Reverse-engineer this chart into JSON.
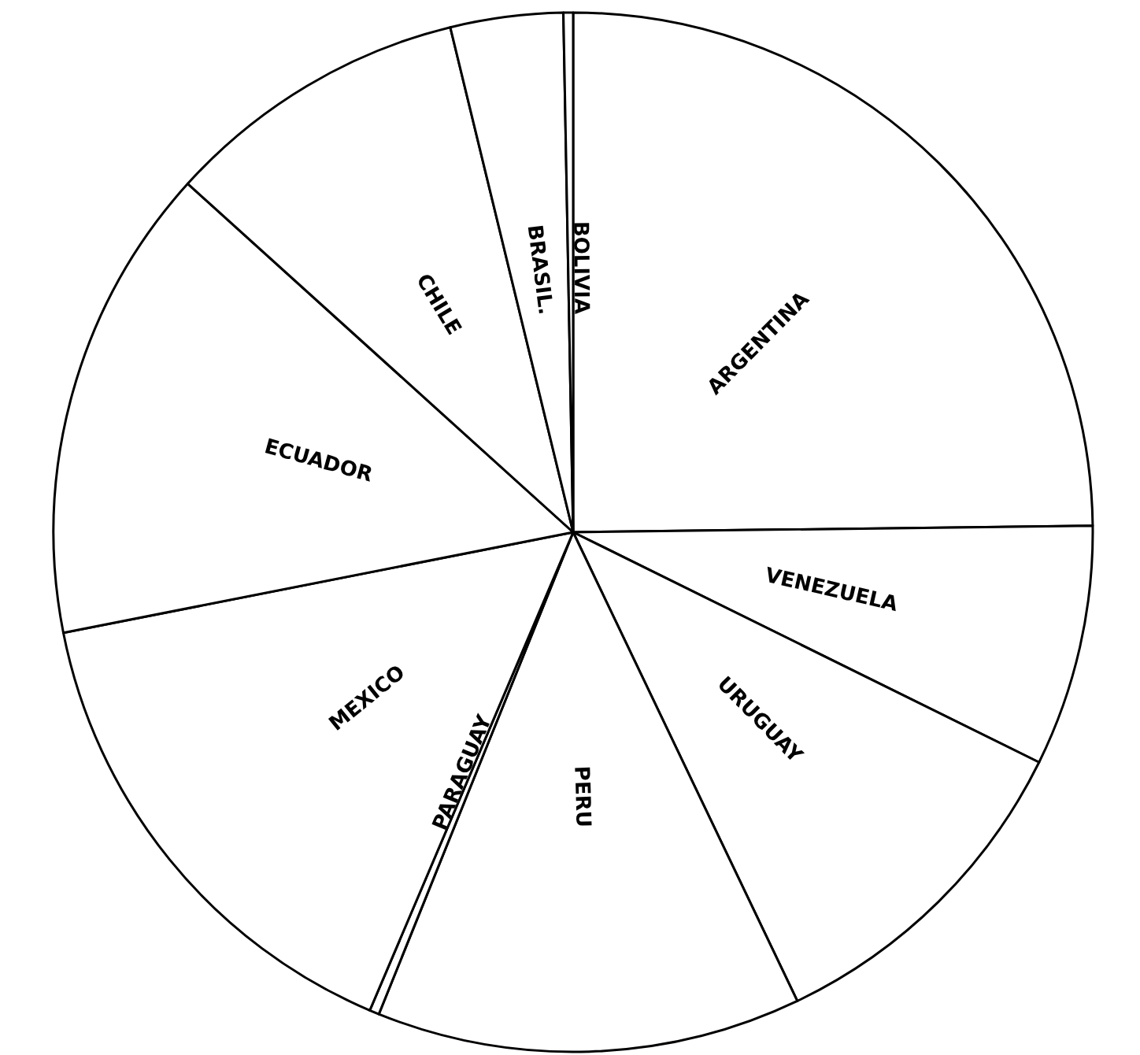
{
  "chart_data": {
    "type": "pie",
    "categories": [
      "ARGENTINA",
      "VENEZUELA",
      "URUGUAY",
      "PERU",
      "PARAGUAY",
      "MEXICO",
      "ECUADOR",
      "CHILE",
      "BRASIL.",
      "BOLIVIA"
    ],
    "values": [
      24.8,
      7.5,
      10.6,
      13.2,
      0.3,
      15.5,
      14.8,
      9.5,
      3.5,
      0.3
    ],
    "colors": [
      "#ffffff",
      "#ffffff",
      "#ffffff",
      "#ffffff",
      "#ffffff",
      "#ffffff",
      "#ffffff",
      "#ffffff",
      "#ffffff",
      "#ffffff"
    ],
    "legend": false
  }
}
